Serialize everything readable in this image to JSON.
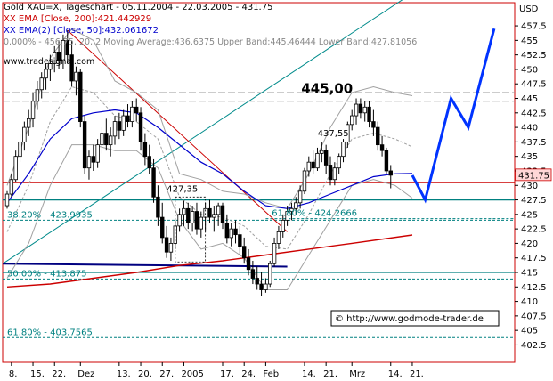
{
  "header": {
    "line1": "Gold XAU=X, Tageschart - 05.11.2004 - 22.03.2005 - 431.75",
    "line2": "XX EMA [Close, 200]:421.442929",
    "line3": "XX EMA(2) [Close, 50]:432.061672",
    "line4": "0.000% - 456.75, 20, 2 Moving Average:436.6375 Upper Band:445.46444 Lower Band:427.81056",
    "website": "www.tradesignal.com",
    "currency": "USD"
  },
  "copyright": "© http://www.godmode-trader.de",
  "colors": {
    "price": "#000000",
    "ema200": "#cc0000",
    "ema50": "#0000cc",
    "bands": "#a0a0a0",
    "projection": "#0033ff",
    "fib": "#008080",
    "support": "#000080",
    "resistance": "#cc0000",
    "trend_up": "#008b8b",
    "trend_down": "#cc0000",
    "frame": "#cc0000"
  },
  "chart_data": {
    "type": "candlestick",
    "title": "Gold XAU=X, Tageschart - 05.11.2004 - 22.03.2005 - 431.75",
    "ylabel": "USD",
    "ylim": [
      399.5,
      461.5
    ],
    "yticks": [
      402.5,
      405,
      407.5,
      410,
      412.5,
      415,
      417.5,
      420,
      422.5,
      425,
      427.5,
      430,
      432.5,
      435,
      437.5,
      440,
      442.5,
      445,
      447.5,
      450,
      452.5,
      455,
      457.5
    ],
    "last_price": "431.75",
    "x_ticks": [
      "8.",
      "15.",
      "22.",
      "Dez",
      "13.",
      "20.",
      "27.",
      "2005",
      "17.",
      "24.",
      "Feb",
      "14.",
      "21.",
      "Mrz",
      "14.",
      "21."
    ],
    "x_tick_index": [
      1,
      6,
      11,
      17,
      26,
      31,
      36,
      41,
      50,
      55,
      60,
      69,
      74,
      80,
      89,
      94
    ],
    "candles": [
      [
        426.5,
        429,
        426,
        428.5
      ],
      [
        428.5,
        432,
        428,
        431
      ],
      [
        431,
        436,
        430.5,
        435
      ],
      [
        435,
        439,
        434,
        437.5
      ],
      [
        437.5,
        441,
        436,
        440
      ],
      [
        440,
        443,
        438.5,
        441.5
      ],
      [
        441.5,
        446,
        440,
        444.5
      ],
      [
        444.5,
        448,
        443,
        446.5
      ],
      [
        446.5,
        449.5,
        445,
        448.5
      ],
      [
        448.5,
        451,
        446.5,
        450
      ],
      [
        450,
        452.5,
        448,
        451
      ],
      [
        451,
        454,
        449.5,
        453
      ],
      [
        453,
        455,
        450,
        451.5
      ],
      [
        451.5,
        456,
        450,
        455
      ],
      [
        455,
        456.75,
        451,
        452.5
      ],
      [
        452.5,
        455,
        447,
        448
      ],
      [
        448,
        450.5,
        445.5,
        449.5
      ],
      [
        449.5,
        450,
        440,
        441
      ],
      [
        441,
        442,
        432,
        433
      ],
      [
        433,
        436,
        431,
        435
      ],
      [
        435,
        437,
        432.5,
        434
      ],
      [
        434,
        438,
        433,
        437
      ],
      [
        437,
        440,
        435.5,
        439
      ],
      [
        439,
        441.5,
        436,
        437
      ],
      [
        437,
        440,
        435,
        438.5
      ],
      [
        438.5,
        442,
        437,
        441
      ],
      [
        441,
        442.5,
        438,
        439.5
      ],
      [
        439.5,
        443,
        438.5,
        442
      ],
      [
        442,
        444,
        440,
        441
      ],
      [
        441,
        444.5,
        440,
        443.5
      ],
      [
        443.5,
        445,
        441,
        442.5
      ],
      [
        442.5,
        443.5,
        436,
        437.5
      ],
      [
        437.5,
        439,
        433.5,
        435
      ],
      [
        435,
        437,
        432,
        433
      ],
      [
        433,
        434.5,
        427,
        428
      ],
      [
        428,
        430,
        423,
        424.5
      ],
      [
        424.5,
        427,
        420,
        421
      ],
      [
        421,
        423,
        417.5,
        418.5
      ],
      [
        418.5,
        421,
        417,
        420
      ],
      [
        420,
        424,
        419,
        423
      ],
      [
        423,
        426,
        422,
        425
      ],
      [
        425,
        427.35,
        423,
        426
      ],
      [
        426,
        427,
        422.5,
        423.5
      ],
      [
        423.5,
        426.5,
        422,
        425.5
      ],
      [
        425.5,
        427,
        421.5,
        422.5
      ],
      [
        422.5,
        425.5,
        421,
        424.5
      ],
      [
        424.5,
        427,
        422,
        426
      ],
      [
        426,
        427.5,
        423.5,
        424.5
      ],
      [
        424.5,
        426.5,
        422,
        425
      ],
      [
        425,
        427,
        423,
        426.5
      ],
      [
        426.5,
        427,
        422.5,
        423.5
      ],
      [
        423.5,
        425,
        420,
        421
      ],
      [
        421,
        423.5,
        419.5,
        422.5
      ],
      [
        422.5,
        424,
        420,
        421.5
      ],
      [
        421.5,
        423,
        418,
        419.5
      ],
      [
        419.5,
        421,
        416.5,
        417.5
      ],
      [
        417.5,
        419,
        414.5,
        415.5
      ],
      [
        415.5,
        417,
        413,
        414
      ],
      [
        414,
        416,
        412,
        413
      ],
      [
        413,
        415,
        411,
        412
      ],
      [
        412,
        414,
        411.5,
        413
      ],
      [
        413,
        417,
        412.5,
        416.5
      ],
      [
        416.5,
        421,
        416,
        420
      ],
      [
        420,
        423,
        419,
        422
      ],
      [
        422,
        425,
        421,
        424
      ],
      [
        424,
        426.5,
        423,
        425.5
      ],
      [
        425.5,
        427,
        424,
        426
      ],
      [
        426,
        428,
        425,
        427
      ],
      [
        427,
        430,
        426,
        429
      ],
      [
        429,
        433,
        428.5,
        432.5
      ],
      [
        432.5,
        435,
        431.5,
        434
      ],
      [
        434,
        436,
        432,
        433
      ],
      [
        433,
        436.5,
        432.5,
        435.5
      ],
      [
        435.5,
        437.55,
        434,
        436
      ],
      [
        436,
        437,
        432,
        433.5
      ],
      [
        433.5,
        435,
        430,
        431
      ],
      [
        431,
        434,
        430,
        433
      ],
      [
        433,
        435.5,
        432,
        435
      ],
      [
        435,
        438,
        434,
        437.5
      ],
      [
        437.5,
        441,
        436.5,
        440.5
      ],
      [
        440.5,
        443,
        439.5,
        442
      ],
      [
        442,
        445,
        440.5,
        444
      ],
      [
        444,
        445,
        441.5,
        442.5
      ],
      [
        442.5,
        444.5,
        441,
        443.5
      ],
      [
        443.5,
        444.5,
        440,
        441
      ],
      [
        441,
        443,
        438.5,
        440
      ],
      [
        440,
        441,
        436,
        437
      ],
      [
        437,
        438.5,
        435,
        436
      ],
      [
        436,
        436.5,
        432,
        432.5
      ],
      [
        432.5,
        433.5,
        429.5,
        431.75
      ]
    ],
    "series": [
      {
        "name": "XX EMA [Close, 200]",
        "values": [
          [
            0,
            412.5
          ],
          [
            10,
            413
          ],
          [
            20,
            414
          ],
          [
            30,
            415
          ],
          [
            40,
            416.2
          ],
          [
            50,
            417
          ],
          [
            60,
            418
          ],
          [
            70,
            419
          ],
          [
            80,
            420
          ],
          [
            94,
            421.44
          ]
        ]
      },
      {
        "name": "XX EMA(2) [Close, 50]",
        "values": [
          [
            0,
            427
          ],
          [
            5,
            432
          ],
          [
            10,
            438
          ],
          [
            15,
            441.5
          ],
          [
            20,
            442.5
          ],
          [
            25,
            443
          ],
          [
            30,
            442.5
          ],
          [
            35,
            440
          ],
          [
            40,
            437
          ],
          [
            45,
            434
          ],
          [
            50,
            432
          ],
          [
            55,
            429
          ],
          [
            60,
            426.5
          ],
          [
            65,
            426
          ],
          [
            70,
            427
          ],
          [
            75,
            428.5
          ],
          [
            80,
            430
          ],
          [
            85,
            431.5
          ],
          [
            90,
            432
          ],
          [
            94,
            432.06
          ]
        ]
      }
    ],
    "bollinger": {
      "upper": [
        [
          0,
          430
        ],
        [
          5,
          440
        ],
        [
          10,
          452
        ],
        [
          15,
          457
        ],
        [
          20,
          455
        ],
        [
          25,
          448
        ],
        [
          30,
          446
        ],
        [
          35,
          443
        ],
        [
          40,
          432
        ],
        [
          45,
          431
        ],
        [
          50,
          429
        ],
        [
          55,
          428.5
        ],
        [
          60,
          427
        ],
        [
          65,
          426
        ],
        [
          70,
          432
        ],
        [
          75,
          440
        ],
        [
          80,
          446
        ],
        [
          85,
          447
        ],
        [
          90,
          446
        ],
        [
          94,
          445.46
        ]
      ],
      "middle": [
        [
          0,
          422
        ],
        [
          5,
          430
        ],
        [
          10,
          441
        ],
        [
          15,
          447
        ],
        [
          20,
          446
        ],
        [
          25,
          442
        ],
        [
          30,
          441
        ],
        [
          35,
          438
        ],
        [
          40,
          428
        ],
        [
          45,
          425
        ],
        [
          50,
          424.5
        ],
        [
          55,
          423
        ],
        [
          60,
          419.5
        ],
        [
          65,
          419
        ],
        [
          70,
          425
        ],
        [
          75,
          432
        ],
        [
          80,
          438
        ],
        [
          85,
          439
        ],
        [
          90,
          438
        ],
        [
          94,
          436.64
        ]
      ],
      "lower": [
        [
          0,
          414
        ],
        [
          5,
          420
        ],
        [
          10,
          430
        ],
        [
          15,
          437
        ],
        [
          20,
          437
        ],
        [
          25,
          436
        ],
        [
          30,
          436
        ],
        [
          35,
          433
        ],
        [
          40,
          424
        ],
        [
          45,
          419
        ],
        [
          50,
          420
        ],
        [
          55,
          417.5
        ],
        [
          60,
          412
        ],
        [
          65,
          412
        ],
        [
          70,
          418
        ],
        [
          75,
          424
        ],
        [
          80,
          430
        ],
        [
          85,
          431
        ],
        [
          90,
          430
        ],
        [
          94,
          427.81
        ]
      ]
    },
    "fib_levels": [
      {
        "label": "38.20% - 423.9935",
        "value": 423.9935
      },
      {
        "label": "50.00% - 413.875",
        "value": 413.875
      },
      {
        "label": "61.80% - 403.7565",
        "value": 403.7565
      },
      {
        "label": "61.80% - 424.2666",
        "value": 424.2666
      }
    ],
    "horizontal_lines": [
      {
        "value": 430.5,
        "style": "red"
      },
      {
        "value": 415.0,
        "style": "teal"
      },
      {
        "value": 427.5,
        "style": "teal"
      },
      {
        "value": 446,
        "style": "grey-dashed"
      },
      {
        "value": 444.5,
        "style": "grey-dashed"
      }
    ],
    "support_line": {
      "from": [
        -1,
        416.5
      ],
      "to": [
        65,
        416.0
      ]
    },
    "trendlines": [
      {
        "name": "uptrend",
        "from": [
          -1,
          416.5
        ],
        "to": [
          108,
          470
        ]
      },
      {
        "name": "downtrend",
        "from": [
          14,
          456.75
        ],
        "to": [
          65,
          422
        ]
      }
    ],
    "projection": [
      [
        94,
        431.75
      ],
      [
        97,
        427.5
      ],
      [
        103,
        445
      ],
      [
        107,
        440
      ],
      [
        113,
        457
      ]
    ],
    "annotations": [
      {
        "text": "445,00",
        "x": 79,
        "y": 445,
        "bold": true
      },
      {
        "text": "437,55",
        "x": 77,
        "y": 437.55
      },
      {
        "text": "427,35",
        "x": 42,
        "y": 428
      }
    ],
    "grid": false,
    "legend": "top-left"
  }
}
